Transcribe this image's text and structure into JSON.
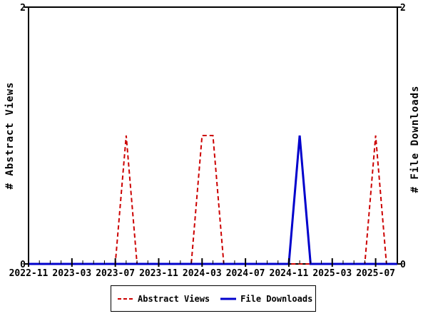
{
  "chart_data": {
    "type": "line",
    "title": "",
    "x": [
      "2022-11",
      "2022-12",
      "2023-01",
      "2023-02",
      "2023-03",
      "2023-04",
      "2023-05",
      "2023-06",
      "2023-07",
      "2023-08",
      "2023-09",
      "2023-10",
      "2023-11",
      "2023-12",
      "2024-01",
      "2024-02",
      "2024-03",
      "2024-04",
      "2024-05",
      "2024-06",
      "2024-07",
      "2024-08",
      "2024-09",
      "2024-10",
      "2024-11",
      "2024-12",
      "2025-01",
      "2025-02",
      "2025-03",
      "2025-04",
      "2025-05",
      "2025-06",
      "2025-07",
      "2025-08",
      "2025-09"
    ],
    "x_tick_labels": [
      "2022-11",
      "2023-03",
      "2023-07",
      "2023-11",
      "2024-03",
      "2024-07",
      "2024-11",
      "2025-03",
      "2025-07"
    ],
    "x_major_tick_every": 4,
    "series": [
      {
        "name": "Abstract Views",
        "color": "#cc0000",
        "style": "dashed",
        "values": [
          0,
          0,
          0,
          0,
          0,
          0,
          0,
          0,
          0,
          1,
          0,
          0,
          0,
          0,
          0,
          0,
          1,
          1,
          0,
          0,
          0,
          0,
          0,
          0,
          0,
          0,
          0,
          0,
          0,
          0,
          0,
          0,
          1,
          0,
          0
        ]
      },
      {
        "name": "File Downloads",
        "color": "#0000cc",
        "style": "solid",
        "values": [
          0,
          0,
          0,
          0,
          0,
          0,
          0,
          0,
          0,
          0,
          0,
          0,
          0,
          0,
          0,
          0,
          0,
          0,
          0,
          0,
          0,
          0,
          0,
          0,
          0,
          1,
          0,
          0,
          0,
          0,
          0,
          0,
          0,
          0,
          0
        ]
      }
    ],
    "ylabel_left": "# Abstract Views",
    "ylabel_right": "# File Downloads",
    "ylim": [
      0,
      2
    ],
    "y_ticks": [
      0,
      2
    ],
    "y_tick_labels": [
      "0",
      "2"
    ],
    "grid": false,
    "legend_position": "bottom",
    "axis_color": "#000000",
    "background_color": "#ffffff"
  },
  "legend": {
    "items": [
      {
        "label": "Abstract Views",
        "color": "#cc0000",
        "style": "dashed"
      },
      {
        "label": "File Downloads",
        "color": "#0000cc",
        "style": "solid"
      }
    ]
  }
}
